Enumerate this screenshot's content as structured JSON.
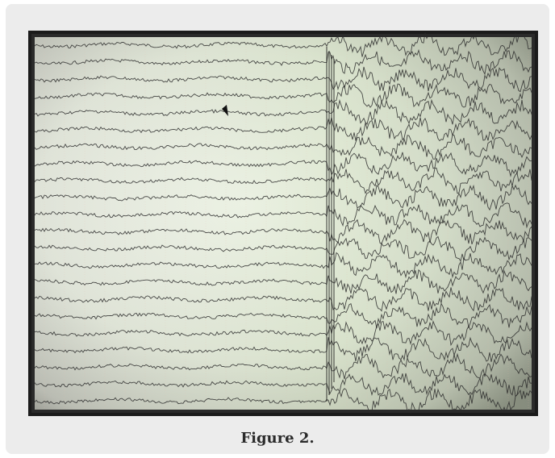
{
  "figure": {
    "caption": "Figure 2.",
    "image_description_icon": "eeg-recording-photo-icon",
    "colors": {
      "panel_bg": "#ececec",
      "frame": "#1b1b1b",
      "screen_light": "#e9eee4",
      "screen_dim": "#8f9088",
      "trace": "#2b2b2b"
    }
  }
}
